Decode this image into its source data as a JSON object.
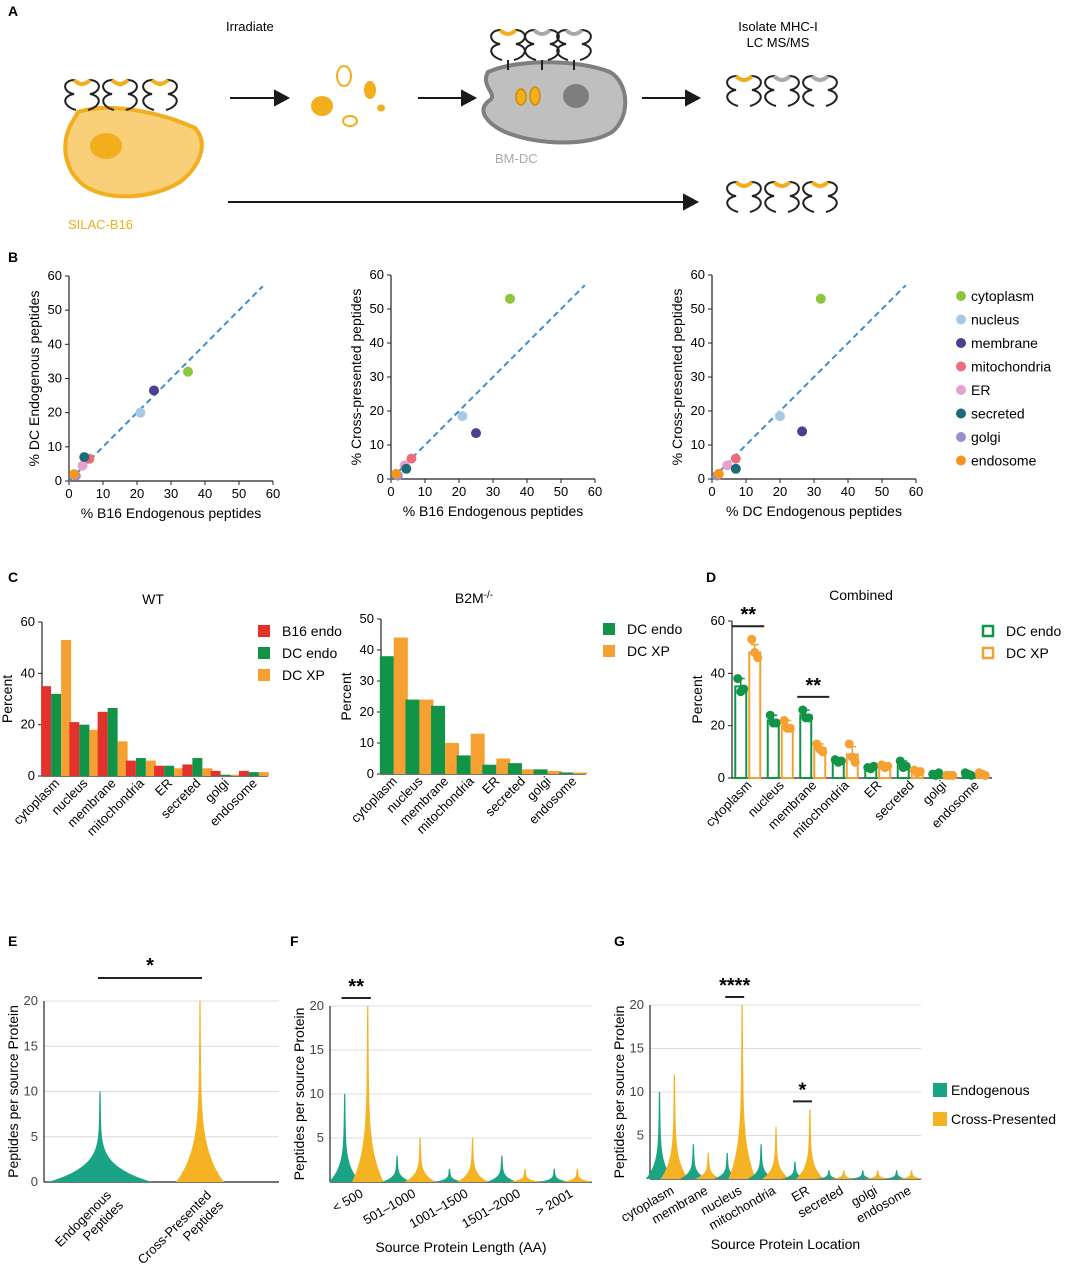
{
  "panel_labels": [
    "A",
    "B",
    "C",
    "D",
    "E",
    "F",
    "G"
  ],
  "schematic": {
    "step_irradiate": "Irradiate",
    "step_isolate_line1": "Isolate MHC-I",
    "step_isolate_line2": "LC MS/MS",
    "cell_dc": "BM-DC",
    "cell_b16": "SILAC-B16",
    "colors": {
      "orange": "#f2ae1c",
      "orange_fill": "#f9cf7a",
      "grey": "#a9a9a9",
      "grey_dark": "#7f7f7f"
    }
  },
  "colors": {
    "cytoplasm": "#8cc63f",
    "nucleus": "#a7c8e6",
    "membrane": "#4b3f8f",
    "mitochondria": "#ee6b7d",
    "ER": "#e8a1cf",
    "secreted": "#1b6c78",
    "golgi": "#9b8ed0",
    "endosome": "#f7941d",
    "b16": "#e3312c",
    "dc_green": "#119447",
    "xp_orange": "#f5a030",
    "teal": "#1aa385",
    "gold": "#f5b324",
    "dash": "#3b8ed0"
  },
  "chart_data": [
    {
      "id": "B1",
      "type": "scatter",
      "xlabel": "% B16 Endogenous peptides",
      "ylabel": "% DC Endogenous peptides",
      "xlim": [
        0,
        60
      ],
      "ylim": [
        0,
        60
      ],
      "xticks": [
        0,
        10,
        20,
        30,
        40,
        50,
        60
      ],
      "yticks": [
        0,
        10,
        20,
        30,
        40,
        50,
        60
      ],
      "identity_line": true,
      "points": [
        {
          "name": "cytoplasm",
          "x": 35,
          "y": 32
        },
        {
          "name": "nucleus",
          "x": 21,
          "y": 20
        },
        {
          "name": "membrane",
          "x": 25,
          "y": 26.5
        },
        {
          "name": "mitochondria",
          "x": 6,
          "y": 6.5
        },
        {
          "name": "ER",
          "x": 4,
          "y": 4.5
        },
        {
          "name": "secreted",
          "x": 4.5,
          "y": 7
        },
        {
          "name": "golgi",
          "x": 2,
          "y": 1.5
        },
        {
          "name": "endosome",
          "x": 1.5,
          "y": 2
        }
      ]
    },
    {
      "id": "B2",
      "type": "scatter",
      "xlabel": "% B16 Endogenous peptides",
      "ylabel": "% Cross-presented peptides",
      "xlim": [
        0,
        60
      ],
      "ylim": [
        0,
        60
      ],
      "xticks": [
        0,
        10,
        20,
        30,
        40,
        50,
        60
      ],
      "yticks": [
        0,
        10,
        20,
        30,
        40,
        50,
        60
      ],
      "identity_line": true,
      "points": [
        {
          "name": "cytoplasm",
          "x": 35,
          "y": 53
        },
        {
          "name": "nucleus",
          "x": 21,
          "y": 18.5
        },
        {
          "name": "membrane",
          "x": 25,
          "y": 13.5
        },
        {
          "name": "mitochondria",
          "x": 6,
          "y": 6
        },
        {
          "name": "ER",
          "x": 4,
          "y": 4
        },
        {
          "name": "secreted",
          "x": 4.5,
          "y": 3
        },
        {
          "name": "golgi",
          "x": 2,
          "y": 1
        },
        {
          "name": "endosome",
          "x": 1.5,
          "y": 1.5
        }
      ]
    },
    {
      "id": "B3",
      "type": "scatter",
      "xlabel": "% DC Endogenous peptides",
      "ylabel": "% Cross-presented peptides",
      "xlim": [
        0,
        60
      ],
      "ylim": [
        0,
        60
      ],
      "xticks": [
        0,
        10,
        20,
        30,
        40,
        50,
        60
      ],
      "yticks": [
        0,
        10,
        20,
        30,
        40,
        50,
        60
      ],
      "identity_line": true,
      "points": [
        {
          "name": "cytoplasm",
          "x": 32,
          "y": 53
        },
        {
          "name": "nucleus",
          "x": 20,
          "y": 18.5
        },
        {
          "name": "membrane",
          "x": 26.5,
          "y": 14
        },
        {
          "name": "mitochondria",
          "x": 7,
          "y": 6
        },
        {
          "name": "ER",
          "x": 4.5,
          "y": 4
        },
        {
          "name": "secreted",
          "x": 7,
          "y": 3
        },
        {
          "name": "golgi",
          "x": 1.5,
          "y": 1
        },
        {
          "name": "endosome",
          "x": 2,
          "y": 1.5
        }
      ]
    },
    {
      "id": "B_legend",
      "entries": [
        "cytoplasm",
        "nucleus",
        "membrane",
        "mitochondria",
        "ER",
        "secreted",
        "golgi",
        "endosome"
      ]
    },
    {
      "id": "C1",
      "type": "bar",
      "title": "WT",
      "ylabel": "Percent",
      "ylim": [
        0,
        60
      ],
      "yticks": [
        0,
        20,
        40,
        60
      ],
      "categories": [
        "cytoplasm",
        "nucleus",
        "membrane",
        "mitochondria",
        "ER",
        "secreted",
        "golgi",
        "endosome"
      ],
      "series": [
        {
          "name": "B16 endo",
          "color_key": "b16",
          "values": [
            35,
            21,
            25,
            6,
            4,
            4.5,
            2,
            2
          ]
        },
        {
          "name": "DC endo",
          "color_key": "dc_green",
          "values": [
            32,
            20,
            26.5,
            7,
            4,
            7,
            0.5,
            1.5
          ]
        },
        {
          "name": "DC XP",
          "color_key": "xp_orange",
          "values": [
            53,
            18,
            13.5,
            6,
            3,
            3,
            0.5,
            1.5
          ]
        }
      ]
    },
    {
      "id": "C2",
      "type": "bar",
      "title_main": "B2M",
      "title_sup": "-/-",
      "ylabel": "Percent",
      "ylim": [
        0,
        50
      ],
      "yticks": [
        0,
        10,
        20,
        30,
        40,
        50
      ],
      "categories": [
        "cytoplasm",
        "nucleus",
        "membrane",
        "mitochondria",
        "ER",
        "secreted",
        "golgi",
        "endosome"
      ],
      "series": [
        {
          "name": "DC endo",
          "color_key": "dc_green",
          "values": [
            38,
            24,
            22,
            6,
            3,
            3.5,
            1.5,
            0.5
          ]
        },
        {
          "name": "DC XP",
          "color_key": "xp_orange",
          "values": [
            44,
            24,
            10,
            13,
            5,
            1.5,
            1,
            0.5
          ]
        }
      ]
    },
    {
      "id": "D",
      "type": "bar",
      "title": "Combined",
      "ylabel": "Percent",
      "ylim": [
        0,
        60
      ],
      "yticks": [
        0,
        20,
        40,
        60
      ],
      "categories": [
        "cytoplasm",
        "nucleus",
        "membrane",
        "mitochondria",
        "ER",
        "secreted",
        "golgi",
        "endosome"
      ],
      "series": [
        {
          "name": "DC endo",
          "color_key": "dc_green",
          "values": [
            35,
            22,
            24,
            6.5,
            4,
            5,
            1.5,
            1.5
          ],
          "err": [
            3,
            2,
            2,
            1,
            1,
            1.5,
            0.5,
            0.5
          ],
          "points": [
            [
              38,
              33,
              34
            ],
            [
              24,
              21,
              21
            ],
            [
              26,
              23,
              23
            ],
            [
              7,
              6,
              6.5
            ],
            [
              4,
              3.5,
              4.5
            ],
            [
              6.5,
              4,
              4.5
            ],
            [
              1.5,
              1,
              2
            ],
            [
              2,
              1.5,
              1
            ]
          ]
        },
        {
          "name": "DC XP",
          "color_key": "xp_orange",
          "values": [
            48,
            20,
            11.5,
            9,
            4.5,
            2.5,
            1,
            1.5
          ],
          "err": [
            3,
            2,
            1.5,
            3,
            1,
            0.5,
            0.3,
            0.3
          ],
          "points": [
            [
              53,
              48,
              46
            ],
            [
              22,
              19,
              19
            ],
            [
              13,
              11,
              10
            ],
            [
              13,
              8,
              6
            ],
            [
              5,
              4,
              4.5
            ],
            [
              3,
              2,
              2.5
            ],
            [
              1,
              1,
              1
            ],
            [
              2,
              1.5,
              1
            ]
          ]
        }
      ],
      "significance": [
        {
          "category": "cytoplasm",
          "label": "**"
        },
        {
          "category": "membrane",
          "label": "**"
        }
      ]
    },
    {
      "id": "E",
      "type": "violin",
      "ylabel": "Peptides per source Protein",
      "ylim": [
        0,
        20
      ],
      "yticks": [
        0,
        5,
        10,
        15,
        20
      ],
      "groups": [
        {
          "label_line1": "Endogenous",
          "label_line2": "Peptides",
          "color_key": "teal",
          "max": 10
        },
        {
          "label_line1": "Cross-Presented",
          "label_line2": "Peptides",
          "color_key": "gold",
          "max": 20
        }
      ],
      "significance": "*"
    },
    {
      "id": "F",
      "type": "violin",
      "ylabel": "Peptides per source Protein",
      "xlabel": "Source Protein Length (AA)",
      "ylim": [
        0,
        20
      ],
      "yticks": [
        5,
        10,
        15,
        20
      ],
      "categories": [
        "< 500",
        "501–1000",
        "1001–1500",
        "1501–2000",
        "> 2001"
      ],
      "series": [
        {
          "name": "Endogenous",
          "color_key": "teal",
          "max": [
            10,
            3,
            1.5,
            3,
            1.5
          ]
        },
        {
          "name": "Cross-Presented",
          "color_key": "gold",
          "max": [
            20,
            5,
            5,
            1.5,
            1.5
          ]
        }
      ],
      "significance": [
        {
          "category": "< 500",
          "label": "**"
        }
      ]
    },
    {
      "id": "G",
      "type": "violin",
      "ylabel": "Peptides per source Protein",
      "xlabel": "Source Protein Location",
      "ylim": [
        0,
        20
      ],
      "yticks": [
        5,
        10,
        15,
        20
      ],
      "categories": [
        "cytoplasm",
        "membrane",
        "nucleus",
        "mitochondria",
        "ER",
        "secreted",
        "golgi",
        "endosome"
      ],
      "series": [
        {
          "name": "Endogenous",
          "color_key": "teal",
          "max": [
            10,
            4,
            3,
            4,
            2,
            1,
            1,
            1
          ]
        },
        {
          "name": "Cross-Presented",
          "color_key": "gold",
          "max": [
            12,
            3,
            20,
            6,
            8,
            1,
            1,
            1
          ]
        }
      ],
      "significance": [
        {
          "category": "nucleus",
          "label": "****"
        },
        {
          "category": "ER",
          "label": "*"
        }
      ]
    }
  ]
}
